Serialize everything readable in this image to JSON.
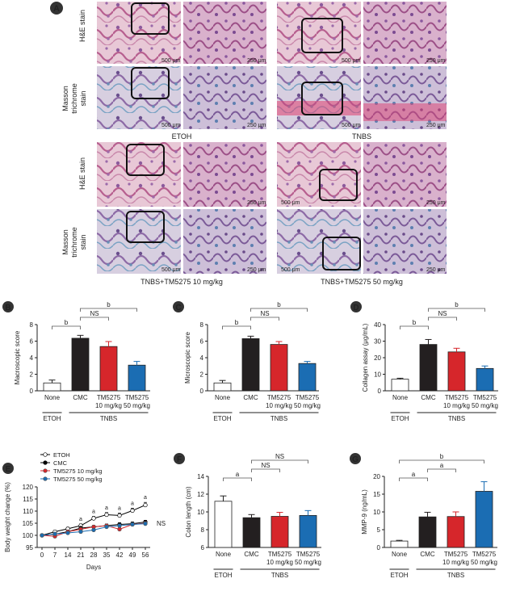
{
  "panelA": {
    "letter": "A",
    "row_labels": {
      "he": [
        "H&E stain"
      ],
      "mt": [
        "Masson",
        "trichrome",
        "stain"
      ]
    },
    "group_titles": [
      "ETOH",
      "TNBS",
      "TNBS+TM5275 10 mg/kg",
      "TNBS+TM5275 50 mg/kg"
    ],
    "scale_500": "500 μm",
    "scale_250": "250 μm"
  },
  "bar_panels": [
    {
      "letter": "B",
      "chart_data": {
        "type": "bar",
        "ylabel": "Macroscopic score",
        "ylim": [
          0,
          8
        ],
        "yticks": [
          "0",
          "2",
          "4",
          "6",
          "8"
        ],
        "categories": [
          "None",
          "CMC",
          "TM5275 10 mg/kg",
          "TM5275 50 mg/kg"
        ],
        "values": [
          0.95,
          6.35,
          5.35,
          3.1
        ],
        "errors": [
          0.35,
          0.35,
          0.6,
          0.45
        ],
        "colors": [
          "#ffffff",
          "#231f20",
          "#d6262b",
          "#1b6db3"
        ],
        "group_labels": [
          "ETOH",
          "TNBS"
        ],
        "annotations": [
          "b",
          "NS",
          "b"
        ]
      }
    },
    {
      "letter": "C",
      "chart_data": {
        "type": "bar",
        "ylabel": "Microscopic score",
        "ylim": [
          0,
          8
        ],
        "yticks": [
          "0",
          "2",
          "4",
          "6",
          "8"
        ],
        "categories": [
          "None",
          "CMC",
          "TM5275 10 mg/kg",
          "TM5275 50 mg/kg"
        ],
        "values": [
          0.95,
          6.3,
          5.6,
          3.3
        ],
        "errors": [
          0.3,
          0.3,
          0.35,
          0.25
        ],
        "colors": [
          "#ffffff",
          "#231f20",
          "#d6262b",
          "#1b6db3"
        ],
        "group_labels": [
          "ETOH",
          "TNBS"
        ],
        "annotations": [
          "b",
          "NS",
          "b"
        ]
      }
    },
    {
      "letter": "D",
      "chart_data": {
        "type": "bar",
        "ylabel": "Collagen assay (μg/mL)",
        "ylim": [
          0,
          40
        ],
        "yticks": [
          "0",
          "10",
          "20",
          "30",
          "40"
        ],
        "categories": [
          "None",
          "CMC",
          "TM5275 10 mg/kg",
          "TM5275 50 mg/kg"
        ],
        "values": [
          7,
          28,
          23.5,
          13.5
        ],
        "errors": [
          0.6,
          3,
          2.2,
          1.5
        ],
        "colors": [
          "#ffffff",
          "#231f20",
          "#d6262b",
          "#1b6db3"
        ],
        "group_labels": [
          "ETOH",
          "TNBS"
        ],
        "annotations": [
          "b",
          "NS",
          "b"
        ]
      }
    },
    {
      "letter": "F",
      "chart_data": {
        "type": "bar",
        "ylabel": "Colon length (cm)",
        "ylim": [
          6,
          14
        ],
        "yticks": [
          "6",
          "8",
          "10",
          "12",
          "14"
        ],
        "categories": [
          "None",
          "CMC",
          "TM5275 10 mg/kg",
          "TM5275 50 mg/kg"
        ],
        "values": [
          11.2,
          9.35,
          9.5,
          9.6
        ],
        "errors": [
          0.6,
          0.35,
          0.45,
          0.55
        ],
        "colors": [
          "#ffffff",
          "#231f20",
          "#d6262b",
          "#1b6db3"
        ],
        "group_labels": [
          "ETOH",
          "TNBS"
        ],
        "annotations": [
          "a",
          "NS",
          "NS"
        ]
      }
    },
    {
      "letter": "G",
      "chart_data": {
        "type": "bar",
        "ylabel": "MMP-9 (ng/mL)",
        "ylim": [
          0,
          20
        ],
        "yticks": [
          "0",
          "5",
          "10",
          "15",
          "20"
        ],
        "categories": [
          "None",
          "CMC",
          "TM5275 10 mg/kg",
          "TM5275 50 mg/kg"
        ],
        "values": [
          1.8,
          8.6,
          8.7,
          15.8
        ],
        "errors": [
          0.2,
          1.3,
          1.3,
          2.7
        ],
        "colors": [
          "#ffffff",
          "#231f20",
          "#d6262b",
          "#1b6db3"
        ],
        "group_labels": [
          "ETOH",
          "TNBS"
        ],
        "annotations": [
          "a",
          "a",
          "b"
        ]
      }
    }
  ],
  "panelE": {
    "letter": "E",
    "chart_data": {
      "type": "line",
      "ylabel": "Body weight change (%)",
      "xlabel": "Days",
      "ylim": [
        95,
        120
      ],
      "yticks": [
        "95",
        "100",
        "105",
        "110",
        "115",
        "120"
      ],
      "x": [
        0,
        7,
        14,
        21,
        28,
        35,
        42,
        49,
        56
      ],
      "xticks": [
        "0",
        "7",
        "14",
        "21",
        "28",
        "35",
        "42",
        "49",
        "56"
      ],
      "series": [
        {
          "name": "ETOH",
          "color": "#000000",
          "marker": "open",
          "values": [
            100,
            101.5,
            102.7,
            104,
            107,
            108.5,
            108.2,
            110.2,
            112.5
          ],
          "errors": [
            0.4,
            0.5,
            0.6,
            0.7,
            0.8,
            0.9,
            1.0,
            1.0,
            1.1
          ]
        },
        {
          "name": "CMC",
          "color": "#000000",
          "marker": "filled",
          "values": [
            100,
            100.5,
            101.5,
            103,
            103.5,
            104,
            104.5,
            104.8,
            105.5
          ],
          "errors": [
            0.4,
            0.5,
            0.5,
            0.6,
            0.6,
            0.7,
            0.7,
            0.7,
            0.7
          ]
        },
        {
          "name": "TM5275 10 mg/kg",
          "color": "#d6262b",
          "marker": "filled",
          "values": [
            100,
            99.6,
            101.5,
            102.5,
            103.5,
            104,
            102.5,
            104.5,
            105
          ],
          "errors": [
            0.4,
            0.5,
            0.5,
            0.6,
            0.6,
            0.6,
            0.7,
            0.7,
            0.7
          ]
        },
        {
          "name": "TM5275 50 mg/kg",
          "color": "#1b6db3",
          "marker": "filled",
          "values": [
            100,
            100.6,
            101,
            101.5,
            102.2,
            103.5,
            104,
            104.5,
            104.8
          ],
          "errors": [
            0.4,
            0.5,
            0.5,
            0.6,
            0.6,
            0.6,
            0.7,
            0.7,
            0.7
          ]
        }
      ],
      "significance_marks": [
        "a",
        "a",
        "a",
        "a",
        "a",
        "a"
      ],
      "end_label": "NS"
    }
  }
}
